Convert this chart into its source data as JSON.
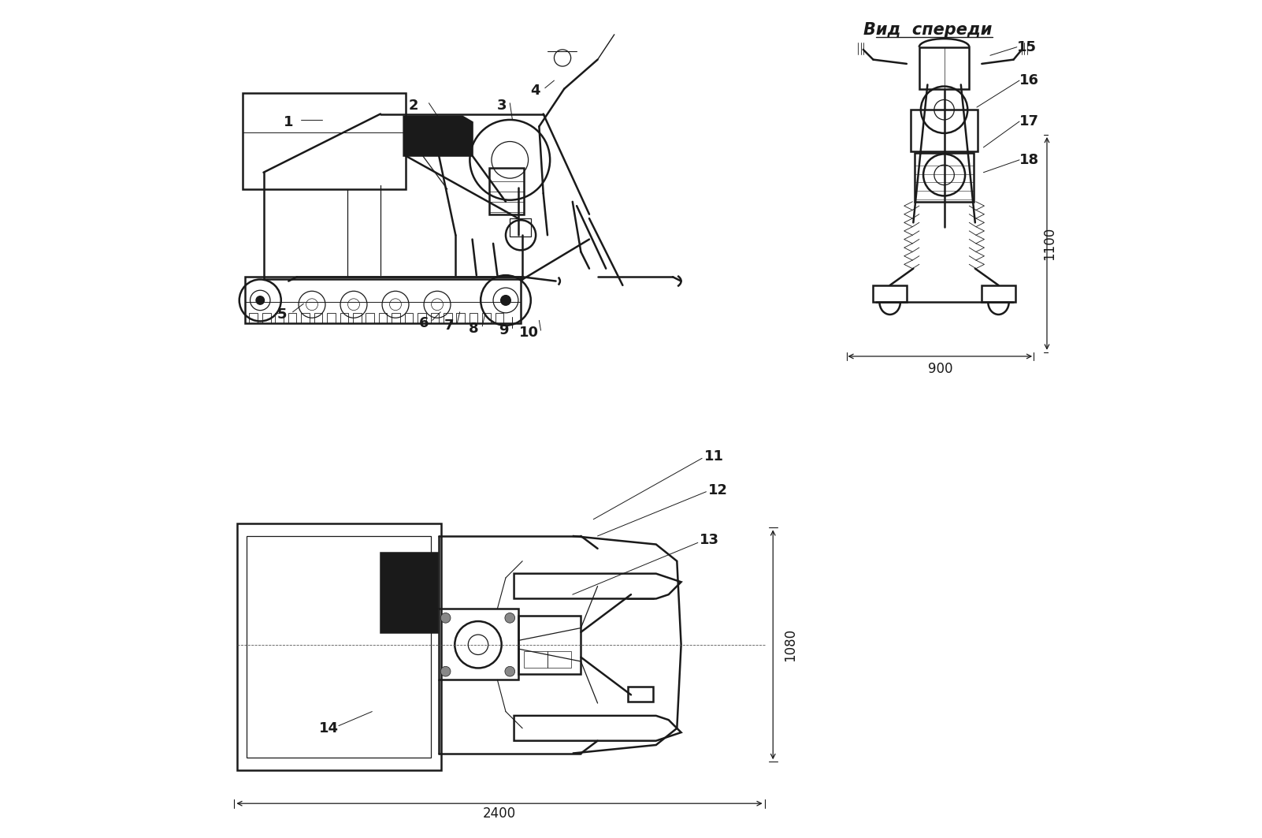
{
  "bg_color": "#ffffff",
  "line_color": "#1a1a1a",
  "thick_line": 1.8,
  "thin_line": 0.9,
  "label_fontsize": 13,
  "dim_fontsize": 12,
  "header_fontsize": 15,
  "view_front_label": "Вид  спереди"
}
